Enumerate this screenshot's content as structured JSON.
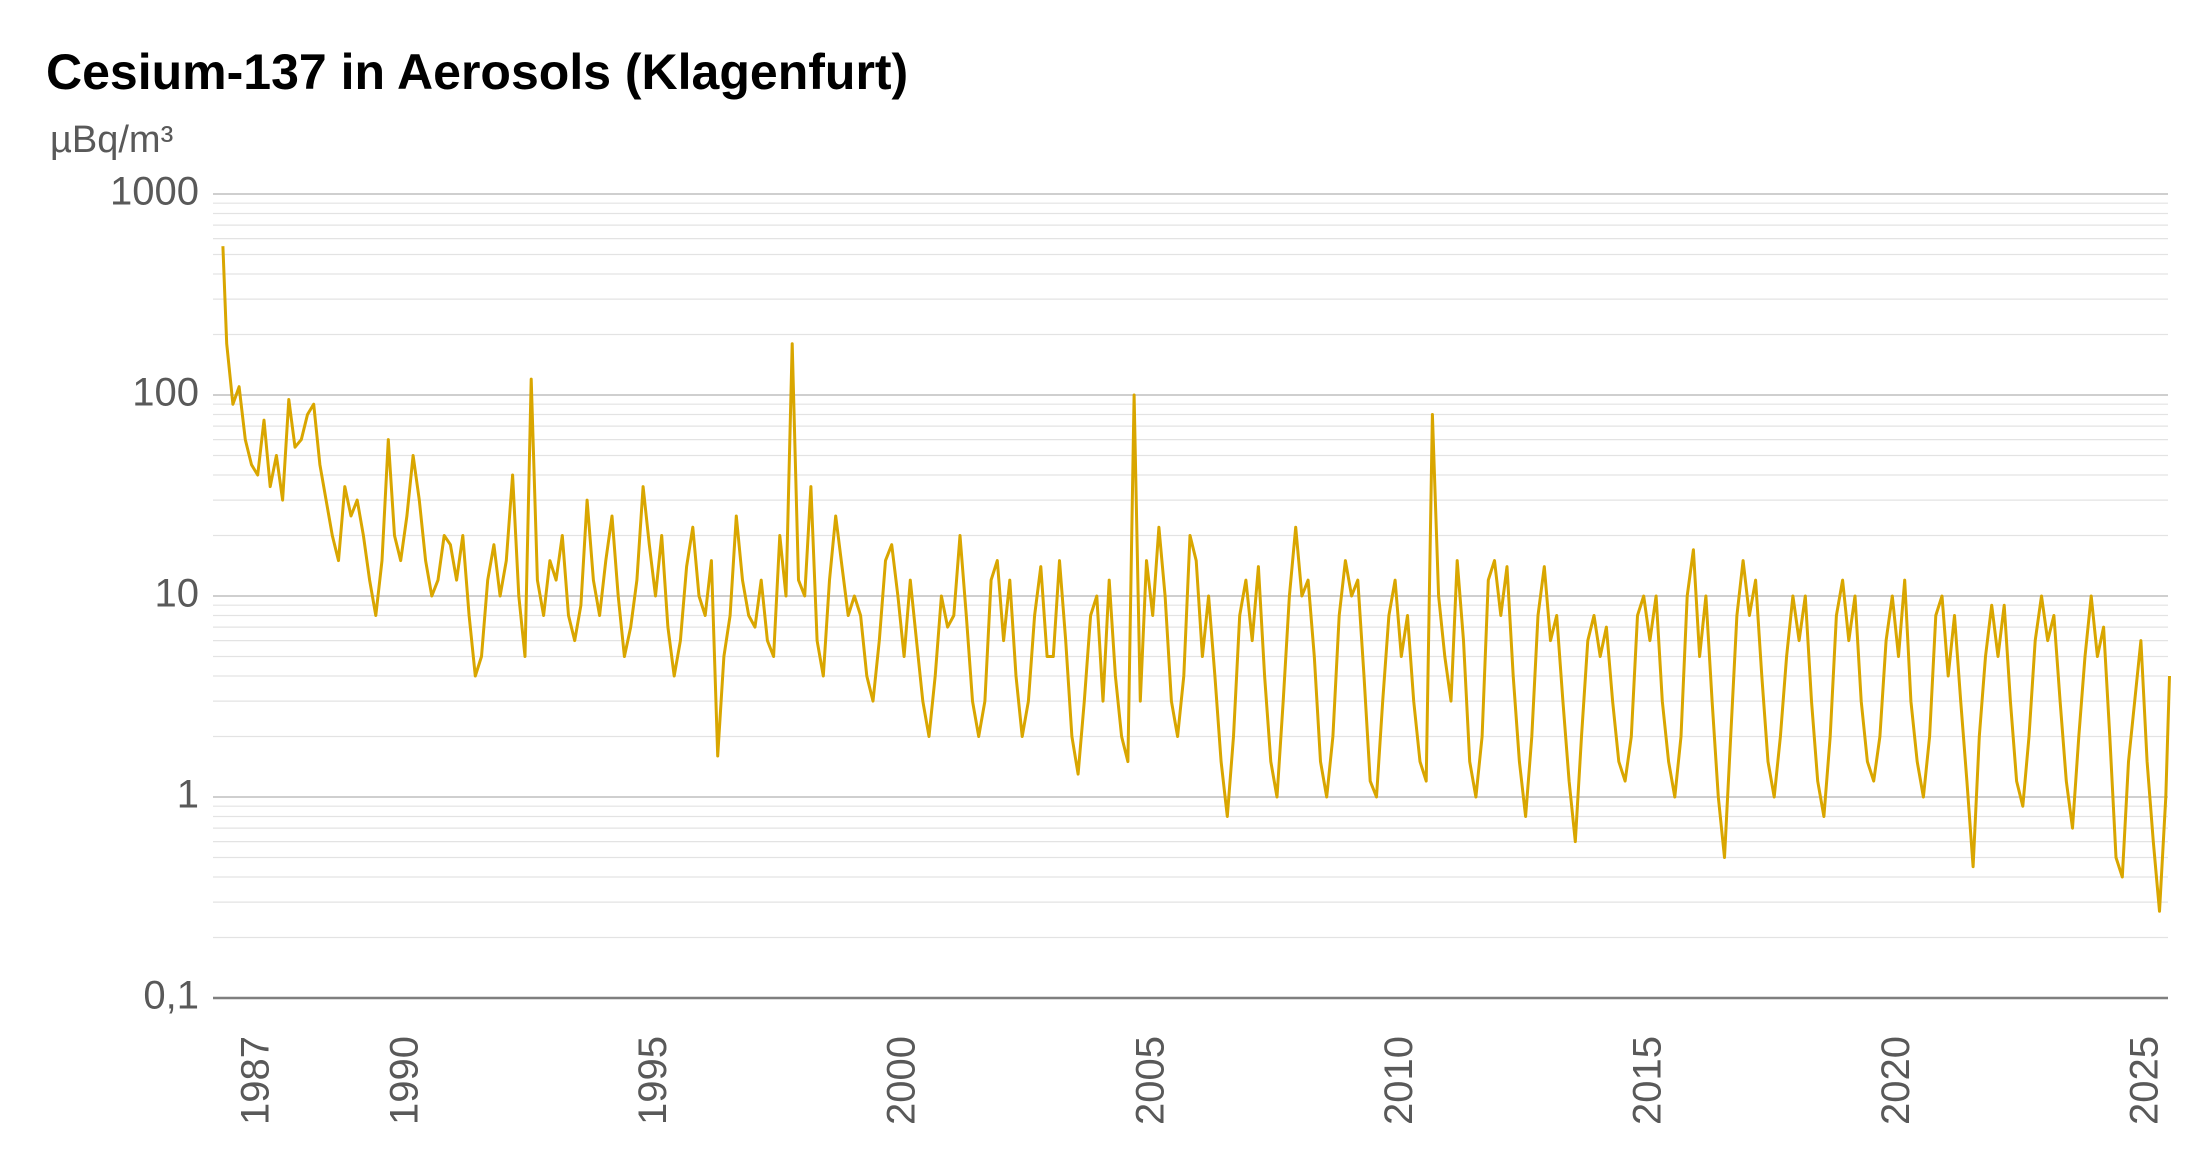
{
  "chart_data": {
    "type": "line",
    "title": "Cesium-137 in Aerosols (Klagenfurt)",
    "y_label": "µBq/m³",
    "y_scale": "log",
    "grid": true,
    "minor_grid": true,
    "color": "#D9A600",
    "xlim": [
      1986.1,
      2025.42
    ],
    "ylim": [
      0.1,
      1000
    ],
    "xticks": [
      1987,
      1990,
      1995,
      2000,
      2005,
      2010,
      2015,
      2020,
      2025
    ],
    "yticks": [
      {
        "value": 0.1,
        "label": "0,1"
      },
      1,
      10,
      100,
      1000
    ],
    "x": [
      1986.3,
      1986.375,
      1986.5,
      1986.625,
      1986.75,
      1986.875,
      1987,
      1987.125,
      1987.25,
      1987.375,
      1987.5,
      1987.625,
      1987.75,
      1987.875,
      1988,
      1988.125,
      1988.25,
      1988.375,
      1988.5,
      1988.625,
      1988.75,
      1988.875,
      1989,
      1989.125,
      1989.25,
      1989.375,
      1989.5,
      1989.625,
      1989.75,
      1989.875,
      1990,
      1990.125,
      1990.25,
      1990.375,
      1990.5,
      1990.625,
      1990.75,
      1990.875,
      1991,
      1991.125,
      1991.25,
      1991.375,
      1991.5,
      1991.625,
      1991.75,
      1991.875,
      1992,
      1992.125,
      1992.25,
      1992.375,
      1992.5,
      1992.625,
      1992.75,
      1992.875,
      1993,
      1993.125,
      1993.25,
      1993.375,
      1993.5,
      1993.625,
      1993.75,
      1993.875,
      1994,
      1994.125,
      1994.25,
      1994.375,
      1994.5,
      1994.625,
      1994.75,
      1994.875,
      1995,
      1995.125,
      1995.25,
      1995.375,
      1995.5,
      1995.625,
      1995.75,
      1995.875,
      1996,
      1996.125,
      1996.25,
      1996.375,
      1996.5,
      1996.625,
      1996.75,
      1996.875,
      1997,
      1997.125,
      1997.25,
      1997.375,
      1997.5,
      1997.625,
      1997.75,
      1997.875,
      1998,
      1998.125,
      1998.25,
      1998.375,
      1998.5,
      1998.625,
      1998.75,
      1998.875,
      1999,
      1999.125,
      1999.25,
      1999.375,
      1999.5,
      1999.625,
      1999.75,
      1999.875,
      2000,
      2000.125,
      2000.25,
      2000.375,
      2000.5,
      2000.625,
      2000.75,
      2000.875,
      2001,
      2001.125,
      2001.25,
      2001.375,
      2001.5,
      2001.625,
      2001.75,
      2001.875,
      2002,
      2002.125,
      2002.25,
      2002.375,
      2002.5,
      2002.625,
      2002.75,
      2002.875,
      2003,
      2003.125,
      2003.25,
      2003.375,
      2003.5,
      2003.625,
      2003.75,
      2003.875,
      2004,
      2004.125,
      2004.25,
      2004.375,
      2004.5,
      2004.625,
      2004.75,
      2004.875,
      2005,
      2005.125,
      2005.25,
      2005.375,
      2005.5,
      2005.625,
      2005.75,
      2005.875,
      2006,
      2006.125,
      2006.25,
      2006.375,
      2006.5,
      2006.625,
      2006.75,
      2006.875,
      2007,
      2007.125,
      2007.25,
      2007.375,
      2007.5,
      2007.625,
      2007.75,
      2007.875,
      2008,
      2008.125,
      2008.25,
      2008.375,
      2008.5,
      2008.625,
      2008.75,
      2008.875,
      2009,
      2009.125,
      2009.25,
      2009.375,
      2009.5,
      2009.625,
      2009.75,
      2009.875,
      2010,
      2010.125,
      2010.25,
      2010.375,
      2010.5,
      2010.625,
      2010.75,
      2010.875,
      2011,
      2011.125,
      2011.25,
      2011.375,
      2011.5,
      2011.625,
      2011.75,
      2011.875,
      2012,
      2012.125,
      2012.25,
      2012.375,
      2012.5,
      2012.625,
      2012.75,
      2012.875,
      2013,
      2013.125,
      2013.25,
      2013.375,
      2013.5,
      2013.625,
      2013.75,
      2013.875,
      2014,
      2014.125,
      2014.25,
      2014.375,
      2014.5,
      2014.625,
      2014.75,
      2014.875,
      2015,
      2015.125,
      2015.25,
      2015.375,
      2015.5,
      2015.625,
      2015.75,
      2015.875,
      2016,
      2016.125,
      2016.25,
      2016.375,
      2016.5,
      2016.625,
      2016.75,
      2016.875,
      2017,
      2017.125,
      2017.25,
      2017.375,
      2017.5,
      2017.625,
      2017.75,
      2017.875,
      2018,
      2018.125,
      2018.25,
      2018.375,
      2018.5,
      2018.625,
      2018.75,
      2018.875,
      2019,
      2019.125,
      2019.25,
      2019.375,
      2019.5,
      2019.625,
      2019.75,
      2019.875,
      2020,
      2020.125,
      2020.25,
      2020.375,
      2020.5,
      2020.625,
      2020.75,
      2020.875,
      2021,
      2021.125,
      2021.25,
      2021.375,
      2021.5,
      2021.625,
      2021.75,
      2021.875,
      2022,
      2022.125,
      2022.25,
      2022.375,
      2022.5,
      2022.625,
      2022.75,
      2022.875,
      2023,
      2023.125,
      2023.25,
      2023.375,
      2023.5,
      2023.625,
      2023.75,
      2023.875,
      2024,
      2024.125,
      2024.25,
      2024.375,
      2024.5,
      2024.625,
      2024.75,
      2024.875,
      2025,
      2025.125,
      2025.25,
      2025.375,
      2025.45
    ],
    "values": [
      550,
      180,
      90,
      110,
      60,
      45,
      40,
      75,
      35,
      50,
      30,
      95,
      55,
      60,
      80,
      90,
      45,
      30,
      20,
      15,
      35,
      25,
      30,
      20,
      12,
      8,
      15,
      60,
      20,
      15,
      25,
      50,
      30,
      15,
      10,
      12,
      20,
      18,
      12,
      20,
      8,
      4,
      5,
      12,
      18,
      10,
      15,
      40,
      10,
      5,
      120,
      12,
      8,
      15,
      12,
      20,
      8,
      6,
      9,
      30,
      12,
      8,
      15,
      25,
      10,
      5,
      7,
      12,
      35,
      18,
      10,
      20,
      7,
      4,
      6,
      14,
      22,
      10,
      8,
      15,
      1.6,
      5,
      8,
      25,
      12,
      8,
      7,
      12,
      6,
      5,
      20,
      10,
      180,
      12,
      10,
      35,
      6,
      4,
      12,
      25,
      14,
      8,
      10,
      8,
      4,
      3,
      6,
      15,
      18,
      10,
      5,
      12,
      6,
      3,
      2,
      4,
      10,
      7,
      8,
      20,
      8,
      3,
      2,
      3,
      12,
      15,
      6,
      12,
      4,
      2,
      3,
      8,
      14,
      5,
      5,
      15,
      6,
      2,
      1.3,
      3,
      8,
      10,
      3,
      12,
      4,
      2,
      1.5,
      100,
      3,
      15,
      8,
      22,
      10,
      3,
      2,
      4,
      20,
      15,
      5,
      10,
      4,
      1.5,
      0.8,
      2,
      8,
      12,
      6,
      14,
      4,
      1.5,
      1,
      3,
      10,
      22,
      10,
      12,
      5,
      1.5,
      1,
      2,
      8,
      15,
      10,
      12,
      4,
      1.2,
      1,
      3,
      8,
      12,
      5,
      8,
      3,
      1.5,
      1.2,
      80,
      10,
      5,
      3,
      15,
      6,
      1.5,
      1,
      2,
      12,
      15,
      8,
      14,
      4,
      1.5,
      0.8,
      2,
      8,
      14,
      6,
      8,
      3,
      1.2,
      0.6,
      2,
      6,
      8,
      5,
      7,
      3,
      1.5,
      1.2,
      2,
      8,
      10,
      6,
      10,
      3,
      1.5,
      1,
      2,
      10,
      17,
      5,
      10,
      3,
      1,
      0.5,
      2,
      8,
      15,
      8,
      12,
      4,
      1.5,
      1,
      2,
      5,
      10,
      6,
      10,
      3,
      1.2,
      0.8,
      2,
      8,
      12,
      6,
      10,
      3,
      1.5,
      1.2,
      2,
      6,
      10,
      5,
      12,
      3,
      1.5,
      1,
      2,
      8,
      10,
      4,
      8,
      3,
      1.2,
      0.45,
      2,
      5,
      9,
      5,
      9,
      3,
      1.2,
      0.9,
      2,
      6,
      10,
      6,
      8,
      3,
      1.2,
      0.7,
      2,
      5,
      10,
      5,
      7,
      2,
      0.5,
      0.4,
      1.5,
      3,
      6,
      1.5,
      0.6,
      0.27,
      1,
      4
    ]
  }
}
